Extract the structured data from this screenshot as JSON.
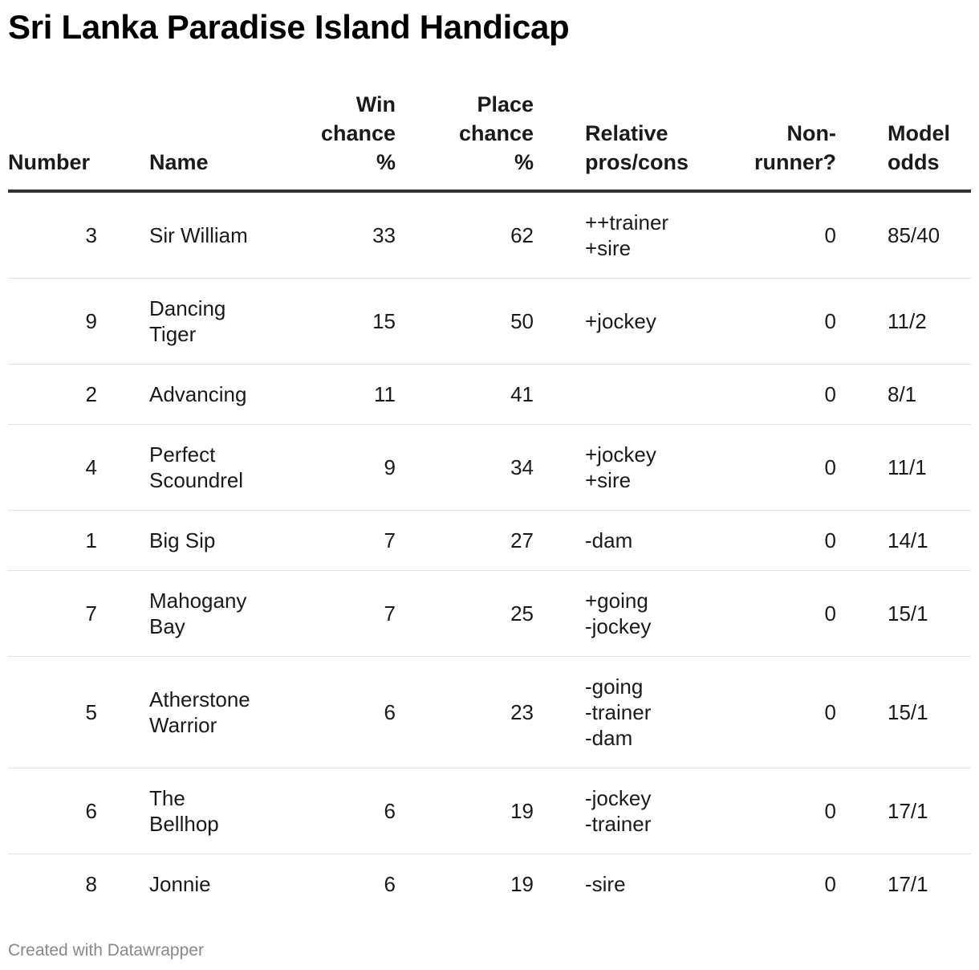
{
  "title": "Sri Lanka Paradise Island Handicap",
  "columns": {
    "number": "Number",
    "name": "Name",
    "win": "Win\nchance\n%",
    "place": "Place\nchance\n%",
    "relative": "Relative\npros/cons",
    "non_runner": "Non-\nrunner?",
    "model_odds": "Model\nodds"
  },
  "rows": [
    {
      "number": "3",
      "name": "Sir William",
      "win": "33",
      "place": "62",
      "relative": "++trainer\n+sire",
      "non_runner": "0",
      "model_odds": "85/40"
    },
    {
      "number": "9",
      "name": "Dancing\nTiger",
      "win": "15",
      "place": "50",
      "relative": "+jockey",
      "non_runner": "0",
      "model_odds": "11/2"
    },
    {
      "number": "2",
      "name": "Advancing",
      "win": "11",
      "place": "41",
      "relative": "",
      "non_runner": "0",
      "model_odds": "8/1"
    },
    {
      "number": "4",
      "name": "Perfect\nScoundrel",
      "win": "9",
      "place": "34",
      "relative": "+jockey\n+sire",
      "non_runner": "0",
      "model_odds": "11/1"
    },
    {
      "number": "1",
      "name": "Big Sip",
      "win": "7",
      "place": "27",
      "relative": "-dam",
      "non_runner": "0",
      "model_odds": "14/1"
    },
    {
      "number": "7",
      "name": "Mahogany\nBay",
      "win": "7",
      "place": "25",
      "relative": "+going\n-jockey",
      "non_runner": "0",
      "model_odds": "15/1"
    },
    {
      "number": "5",
      "name": "Atherstone\nWarrior",
      "win": "6",
      "place": "23",
      "relative": "-going\n-trainer\n-dam",
      "non_runner": "0",
      "model_odds": "15/1"
    },
    {
      "number": "6",
      "name": "The\nBellhop",
      "win": "6",
      "place": "19",
      "relative": "-jockey\n-trainer",
      "non_runner": "0",
      "model_odds": "17/1"
    },
    {
      "number": "8",
      "name": "Jonnie",
      "win": "6",
      "place": "19",
      "relative": "-sire",
      "non_runner": "0",
      "model_odds": "17/1"
    }
  ],
  "chart_data": {
    "type": "table",
    "title": "Sri Lanka Paradise Island Handicap",
    "columns": [
      "Number",
      "Name",
      "Win chance %",
      "Place chance %",
      "Relative pros/cons",
      "Non-runner?",
      "Model odds"
    ],
    "rows": [
      [
        3,
        "Sir William",
        33,
        62,
        "++trainer +sire",
        0,
        "85/40"
      ],
      [
        9,
        "Dancing Tiger",
        15,
        50,
        "+jockey",
        0,
        "11/2"
      ],
      [
        2,
        "Advancing",
        11,
        41,
        "",
        0,
        "8/1"
      ],
      [
        4,
        "Perfect Scoundrel",
        9,
        34,
        "+jockey +sire",
        0,
        "11/1"
      ],
      [
        1,
        "Big Sip",
        7,
        27,
        "-dam",
        0,
        "14/1"
      ],
      [
        7,
        "Mahogany Bay",
        7,
        25,
        "+going -jockey",
        0,
        "15/1"
      ],
      [
        5,
        "Atherstone Warrior",
        6,
        23,
        "-going -trainer -dam",
        0,
        "15/1"
      ],
      [
        6,
        "The Bellhop",
        6,
        19,
        "-jockey -trainer",
        0,
        "17/1"
      ],
      [
        8,
        "Jonnie",
        6,
        19,
        "-sire",
        0,
        "17/1"
      ]
    ]
  },
  "footer": {
    "credit": "Created with Datawrapper"
  }
}
